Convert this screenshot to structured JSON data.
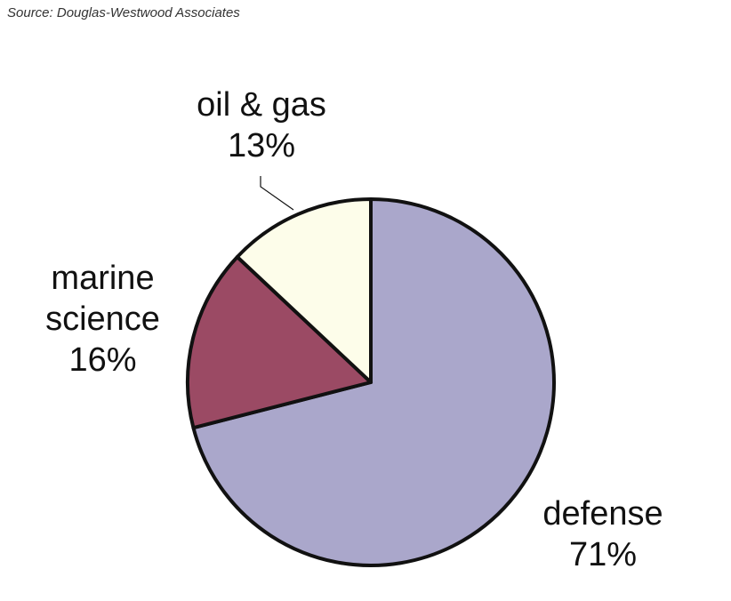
{
  "chart_data": {
    "type": "pie",
    "source": "Source: Douglas-Westwood Associates",
    "categories": [
      "defense",
      "marine science",
      "oil & gas"
    ],
    "values": [
      71,
      16,
      13
    ],
    "value_labels": [
      "71%",
      "16%",
      "13%"
    ],
    "colors": [
      "#aaa7cb",
      "#9b4a64",
      "#fdfdea"
    ]
  }
}
